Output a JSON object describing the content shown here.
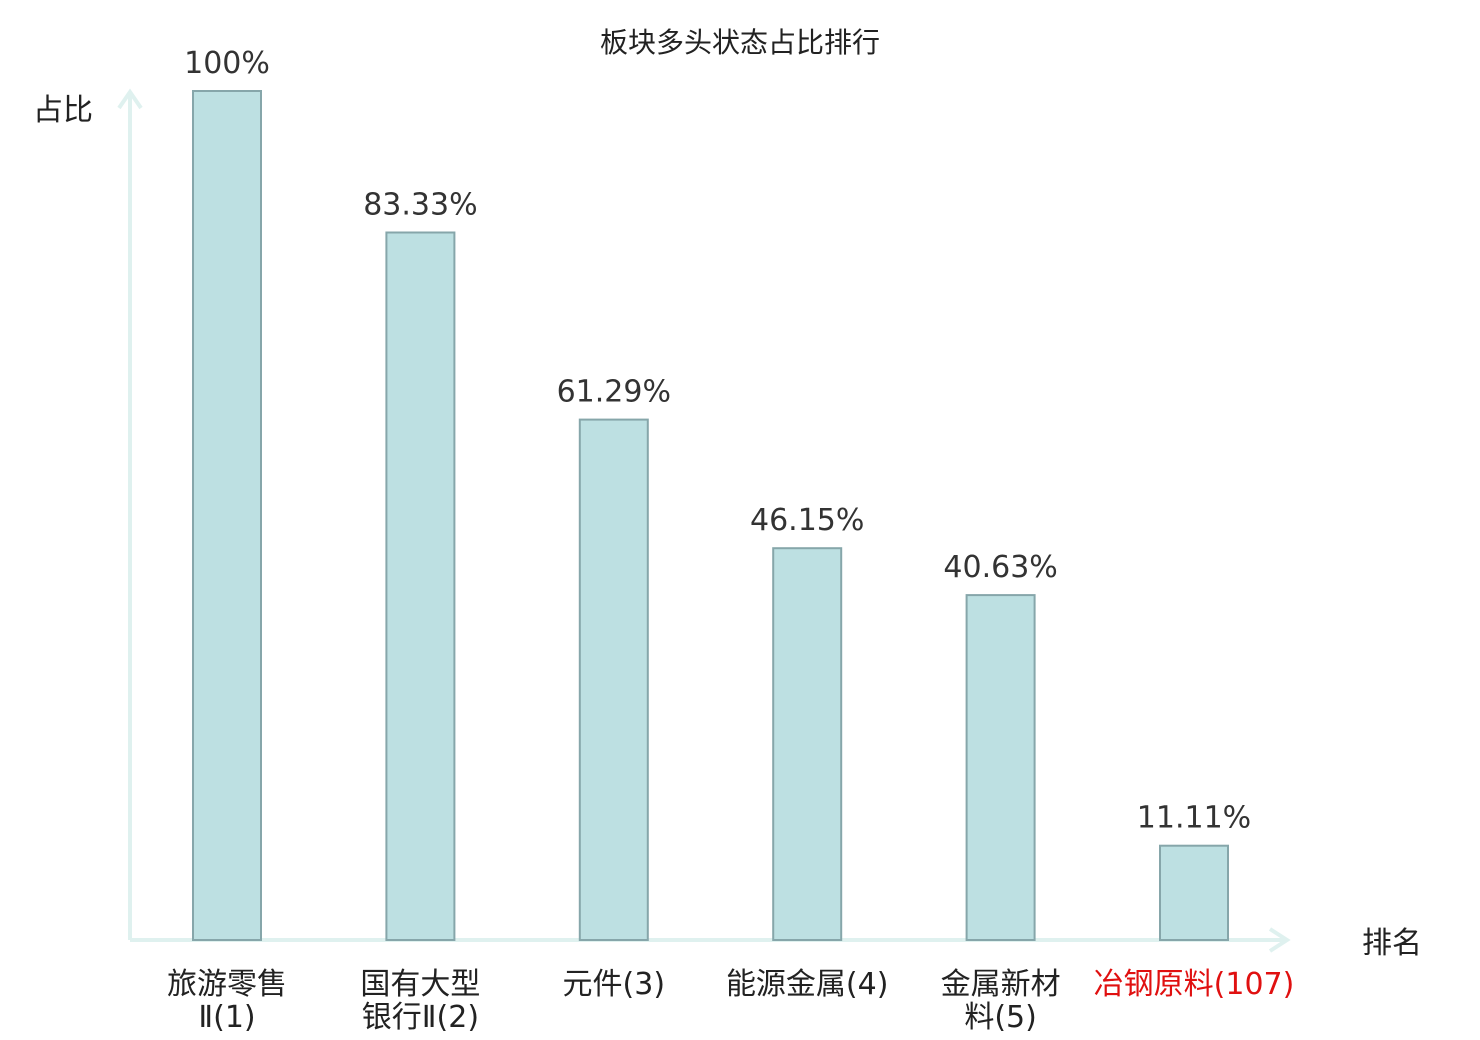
{
  "chart_data": {
    "type": "bar",
    "title": "板块多头状态占比排行",
    "ylabel": "占比",
    "xlabel": "排名",
    "ylim": [
      0,
      100
    ],
    "grid": false,
    "categories": [
      {
        "lines": [
          "旅游零售",
          "Ⅱ(1)"
        ],
        "highlight": false
      },
      {
        "lines": [
          "国有大型",
          "银行Ⅱ(2)"
        ],
        "highlight": false
      },
      {
        "lines": [
          "元件(3)"
        ],
        "highlight": false
      },
      {
        "lines": [
          "能源金属(4)"
        ],
        "highlight": false
      },
      {
        "lines": [
          "金属新材",
          "料(5)"
        ],
        "highlight": false
      },
      {
        "lines": [
          "冶钢原料(107)"
        ],
        "highlight": true
      }
    ],
    "values": [
      100,
      83.33,
      61.29,
      46.15,
      40.63,
      11.11
    ],
    "value_labels": [
      "100%",
      "83.33%",
      "61.29%",
      "46.15%",
      "40.63%",
      "11.11%"
    ],
    "colors": {
      "bar_fill": "#bde0e2",
      "bar_stroke": "#86a6aa",
      "axis": "#dff1ef",
      "label_text": "#222222",
      "highlight_text": "#e01010"
    }
  }
}
